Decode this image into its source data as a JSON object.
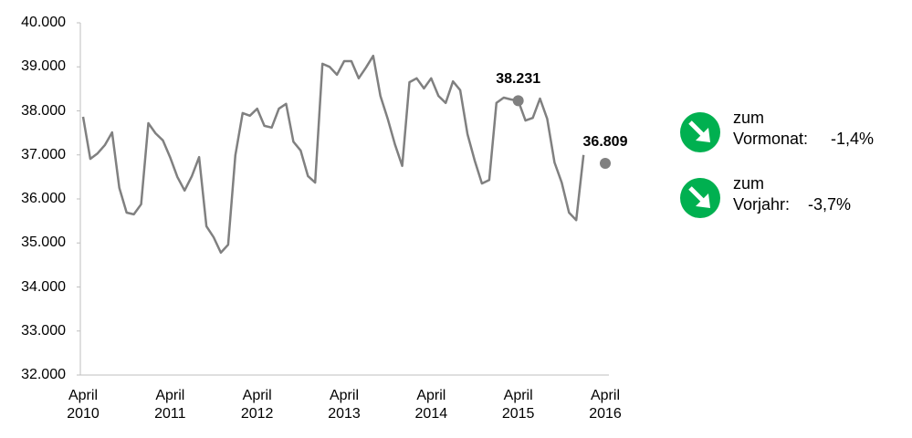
{
  "chart_data": {
    "type": "line",
    "categories": [
      "April\n2010",
      null,
      null,
      null,
      null,
      null,
      null,
      null,
      null,
      null,
      null,
      null,
      "April\n2011",
      null,
      null,
      null,
      null,
      null,
      null,
      null,
      null,
      null,
      null,
      null,
      "April\n2012",
      null,
      null,
      null,
      null,
      null,
      null,
      null,
      null,
      null,
      null,
      null,
      "April\n2013",
      null,
      null,
      null,
      null,
      null,
      null,
      null,
      null,
      null,
      null,
      null,
      "April\n2014",
      null,
      null,
      null,
      null,
      null,
      null,
      null,
      null,
      null,
      null,
      null,
      "April\n2015",
      null,
      null,
      null,
      null,
      null,
      null,
      null,
      null,
      null,
      null,
      null,
      "April\n2016"
    ],
    "series": [
      {
        "color": "#808080",
        "values": [
          37865,
          36910,
          37035,
          37220,
          37510,
          36250,
          35690,
          35650,
          35880,
          37720,
          37490,
          37330,
          36950,
          36500,
          36190,
          36520,
          36950,
          35380,
          35130,
          34780,
          34960,
          36990,
          37950,
          37890,
          38050,
          37660,
          37620,
          38050,
          38160,
          37300,
          37100,
          36520,
          36370,
          39070,
          39000,
          38820,
          39130,
          39130,
          38740,
          38980,
          39250,
          38340,
          37820,
          37240,
          36750,
          38650,
          38740,
          38510,
          38740,
          38340,
          38180,
          38670,
          38470,
          37470,
          36870,
          36350,
          36430,
          38180,
          38300,
          38260,
          38231,
          37780,
          37840,
          38280,
          37820,
          36830,
          36370,
          35690,
          35520,
          37000,
          null,
          null,
          36809
        ],
        "value_labels": [
          null,
          null,
          null,
          null,
          null,
          null,
          null,
          null,
          null,
          null,
          null,
          null,
          null,
          null,
          null,
          null,
          null,
          null,
          null,
          null,
          null,
          null,
          null,
          null,
          null,
          null,
          null,
          null,
          null,
          null,
          null,
          null,
          null,
          null,
          null,
          null,
          null,
          null,
          null,
          null,
          null,
          null,
          null,
          null,
          null,
          null,
          null,
          null,
          null,
          null,
          null,
          null,
          null,
          null,
          null,
          null,
          null,
          null,
          null,
          null,
          "38.231",
          null,
          null,
          null,
          null,
          null,
          null,
          null,
          null,
          null,
          null,
          null,
          "36.809"
        ]
      }
    ],
    "ylim": [
      32000,
      40000
    ],
    "yticks": [
      {
        "value": 32000,
        "label": "32.000"
      },
      {
        "value": 33000,
        "label": "33.000"
      },
      {
        "value": 34000,
        "label": "34.000"
      },
      {
        "value": 35000,
        "label": "35.000"
      },
      {
        "value": 36000,
        "label": "36.000"
      },
      {
        "value": 37000,
        "label": "37.000"
      },
      {
        "value": 38000,
        "label": "38.000"
      },
      {
        "value": 39000,
        "label": "39.000"
      },
      {
        "value": 40000,
        "label": "40.000"
      }
    ],
    "grid": false,
    "annotations": [
      {
        "text": "zum\nVormonat:",
        "value": "-1,4%",
        "color": "#00b050"
      },
      {
        "text": "zum\nVorjahr:",
        "value": "-3,7%",
        "color": "#00b050"
      }
    ]
  }
}
